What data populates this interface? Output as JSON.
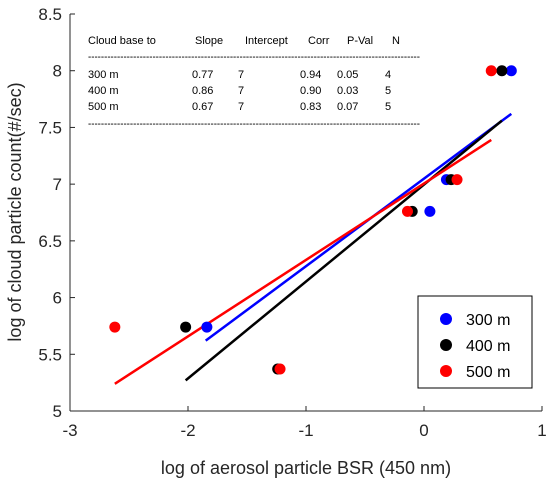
{
  "chart_data": {
    "type": "scatter",
    "xlabel": "log of aerosol particle BSR (450 nm)",
    "ylabel": "log of cloud particle count(#/sec)",
    "xlim": [
      -3,
      1
    ],
    "ylim": [
      5,
      8.5
    ],
    "xticks": [
      "-3",
      "-2",
      "-1",
      "0",
      "1"
    ],
    "yticks": [
      "5",
      "5.5",
      "6",
      "6.5",
      "7",
      "7.5",
      "8",
      "8.5"
    ],
    "grid": false,
    "legend_position": "bottom-right",
    "series": [
      {
        "name": "300 m",
        "color": "#0000ff",
        "points": [
          [
            -1.84,
            5.74
          ],
          [
            0.05,
            6.76
          ],
          [
            0.19,
            7.04
          ],
          [
            0.74,
            8.0
          ]
        ],
        "fit": {
          "x": [
            -1.85,
            0.74
          ],
          "y": [
            5.62,
            7.62
          ]
        }
      },
      {
        "name": "400 m",
        "color": "#000000",
        "points": [
          [
            -2.02,
            5.74
          ],
          [
            -1.24,
            5.37
          ],
          [
            -0.1,
            6.76
          ],
          [
            0.23,
            7.04
          ],
          [
            0.66,
            8.0
          ]
        ],
        "fit": {
          "x": [
            -2.02,
            0.66
          ],
          "y": [
            5.27,
            7.56
          ]
        }
      },
      {
        "name": "500 m",
        "color": "#ff0000",
        "points": [
          [
            -2.62,
            5.74
          ],
          [
            -1.22,
            5.37
          ],
          [
            -0.14,
            6.76
          ],
          [
            0.28,
            7.04
          ],
          [
            0.57,
            8.0
          ]
        ],
        "fit": {
          "x": [
            -2.62,
            0.57
          ],
          "y": [
            5.24,
            7.39
          ]
        }
      }
    ],
    "table": {
      "header": [
        "Cloud base to",
        "Slope",
        "Intercept",
        "Corr",
        "P-Val",
        "N"
      ],
      "rows": [
        [
          "300 m",
          "0.77",
          "7",
          "0.94",
          "0.05",
          "4"
        ],
        [
          "400 m",
          "0.86",
          "7",
          "0.90",
          "0.03",
          "5"
        ],
        [
          "500 m",
          "0.67",
          "7",
          "0.83",
          "0.07",
          "5"
        ]
      ],
      "rule": "-------------------------------------------------------------------------------------------------------"
    }
  }
}
